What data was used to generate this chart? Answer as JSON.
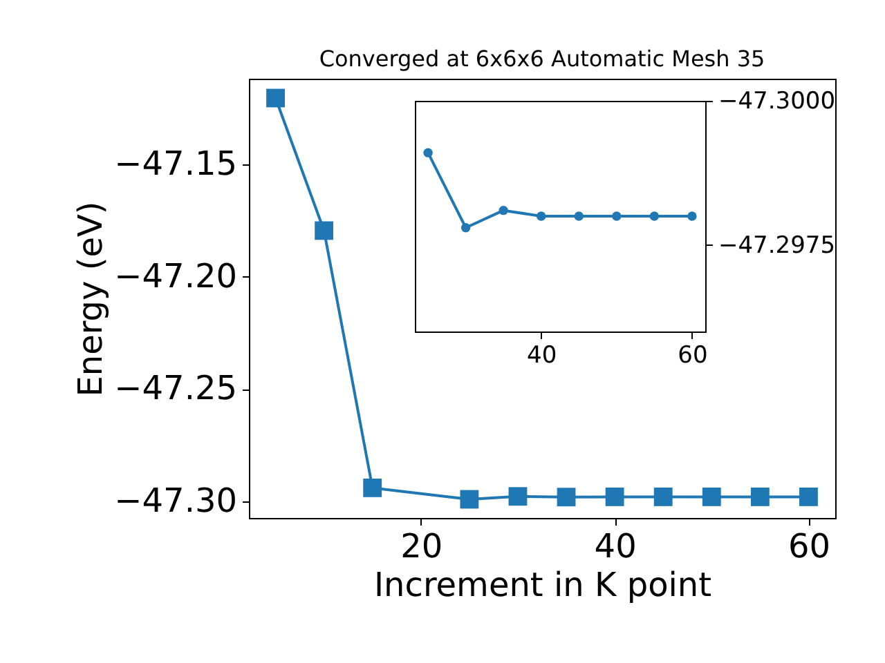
{
  "chart_data": [
    {
      "type": "line",
      "title": "Converged at 6x6x6 Automatic Mesh 35",
      "xlabel": "Increment in K point",
      "ylabel": "Energy (eV)",
      "x": [
        5,
        10,
        15,
        25,
        30,
        35,
        40,
        45,
        50,
        55,
        60
      ],
      "series": [
        {
          "color": "#1f77b4",
          "values": [
            -47.1205,
            -47.1795,
            -47.294,
            -47.2991,
            -47.2978,
            -47.2981,
            -47.298,
            -47.298,
            -47.298,
            -47.298,
            -47.298
          ]
        }
      ],
      "xlim": [
        2.25,
        62.75
      ],
      "xticks": [
        20,
        40,
        60
      ],
      "ylim": [
        -47.3074,
        -47.1119
      ],
      "yticks": [
        -47.15,
        {
          "value": -47.2,
          "label": "−47.20"
        },
        -47.25,
        {
          "value": -47.3,
          "label": "−47.30"
        }
      ],
      "marker": "square",
      "grid": false,
      "legend": false
    },
    {
      "type": "line",
      "x": [
        25,
        30,
        35,
        40,
        45,
        50,
        55,
        60
      ],
      "series": [
        {
          "color": "#1f77b4",
          "values": [
            -47.2991,
            -47.2978,
            -47.2981,
            -47.298,
            -47.298,
            -47.298,
            -47.298,
            -47.298
          ]
        }
      ],
      "xlim": [
        23.25,
        61.75
      ],
      "xticks": [
        40,
        60
      ],
      "ylim": [
        -47.296,
        -47.3
      ],
      "yticks": [
        {
          "value": -47.3,
          "label": "−47.3000"
        },
        {
          "value": -47.2975,
          "label": "−47.2975"
        }
      ],
      "marker": "circle",
      "grid": false,
      "legend": false
    }
  ]
}
